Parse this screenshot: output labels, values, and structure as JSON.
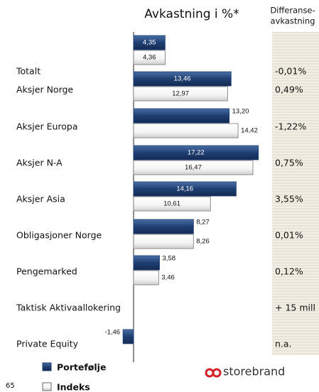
{
  "chart_data": {
    "type": "bar",
    "orientation": "horizontal",
    "title": "Avkastning i %*",
    "diff_header": [
      "Differanse-",
      "avkastning"
    ],
    "categories": [
      "Totalt",
      "Aksjer Norge",
      "Aksjer Europa",
      "Aksjer N-A",
      "Aksjer Asia",
      "Obligasjoner Norge",
      "Pengemarked",
      "Taktisk Aktivaallokering",
      "Private Equity"
    ],
    "series": [
      {
        "name": "Portefølje",
        "color": "#1f3f72",
        "values": [
          4.35,
          13.46,
          13.2,
          17.22,
          14.16,
          8.27,
          3.58,
          null,
          -1.46
        ],
        "value_labels": [
          "4,35",
          "13,46",
          "13,20",
          "17,22",
          "14,16",
          "8,27",
          "3,58",
          null,
          "-1,46"
        ]
      },
      {
        "name": "Indeks",
        "color": "#ffffff",
        "values": [
          4.36,
          12.97,
          14.42,
          16.47,
          10.61,
          8.26,
          3.46,
          null,
          null
        ],
        "value_labels": [
          "4,36",
          "12,97",
          "14,42",
          "16,47",
          "10,61",
          "8,26",
          "3,46",
          null,
          null
        ]
      }
    ],
    "differences": [
      "-0,01%",
      "0,49%",
      "-1,22%",
      "0,75%",
      "3,55%",
      "0,01%",
      "0,12%",
      "+ 15 mill",
      "n.a."
    ],
    "page_number": "65",
    "logo": "storebrand"
  }
}
